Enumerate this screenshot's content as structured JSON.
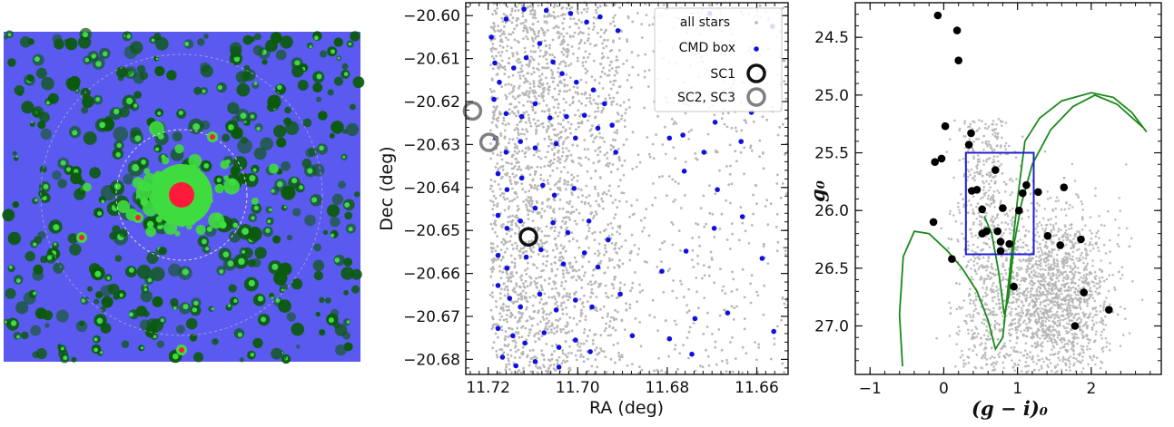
{
  "chart_data": [
    {
      "panel": "image",
      "type": "other",
      "description_colors": {
        "background": "#5a5af0",
        "mid": "#0a5a0a",
        "bright": "#3fdc3f",
        "core": "#ff1a3a",
        "circle": "#e6e6e6"
      }
    },
    {
      "panel": "sky-map",
      "type": "scatter",
      "xlabel": "RA (deg)",
      "ylabel": "Dec (deg)",
      "xlim": [
        11.725,
        11.653
      ],
      "ylim": [
        -20.6835,
        -20.597
      ],
      "x_ticks": [
        11.72,
        11.7,
        11.68,
        11.66
      ],
      "x_tick_labels": [
        "11.72",
        "11.70",
        "11.68",
        "11.66"
      ],
      "y_ticks": [
        -20.6,
        -20.61,
        -20.62,
        -20.63,
        -20.64,
        -20.65,
        -20.66,
        -20.67,
        -20.68
      ],
      "y_tick_labels": [
        "−20.60",
        "−20.61",
        "−20.62",
        "−20.63",
        "−20.64",
        "−20.65",
        "−20.66",
        "−20.67",
        "−20.68"
      ],
      "legend": {
        "placement": "top-right",
        "entries": [
          {
            "label": "all stars",
            "marker": "gray-dot",
            "color": "#b4b4b4"
          },
          {
            "label": "CMD box",
            "marker": "blue-dot",
            "color": "#1010e0"
          },
          {
            "label": "SC1",
            "marker": "black-ring",
            "color": "#111111"
          },
          {
            "label": "SC2, SC3",
            "marker": "gray-ring",
            "color": "#808080"
          }
        ]
      },
      "series": [
        {
          "name": "SC1",
          "points": [
            [
              11.711,
              -20.6515
            ]
          ]
        },
        {
          "name": "SC2, SC3",
          "points": [
            [
              11.7235,
              -20.6222
            ],
            [
              11.7198,
              -20.6295
            ]
          ]
        },
        {
          "name": "CMD box",
          "points": [
            [
              11.7193,
              -20.605
            ],
            [
              11.716,
              -20.6008
            ],
            [
              11.712,
              -20.5985
            ],
            [
              11.707,
              -20.5988
            ],
            [
              11.7016,
              -20.5995
            ],
            [
              11.698,
              -20.6015
            ],
            [
              11.695,
              -20.6003
            ],
            [
              11.6705,
              -20.5995
            ],
            [
              11.6565,
              -20.6025
            ],
            [
              11.691,
              -20.6035
            ],
            [
              11.7185,
              -20.611
            ],
            [
              11.7175,
              -20.6155
            ],
            [
              11.7143,
              -20.6122
            ],
            [
              11.7115,
              -20.6098
            ],
            [
              11.7085,
              -20.6065
            ],
            [
              11.7055,
              -20.6108
            ],
            [
              11.7035,
              -20.6135
            ],
            [
              11.7003,
              -20.6155
            ],
            [
              11.6965,
              -20.6173
            ],
            [
              11.694,
              -20.6205
            ],
            [
              11.7187,
              -20.6195
            ],
            [
              11.716,
              -20.6228
            ],
            [
              11.7125,
              -20.6235
            ],
            [
              11.7095,
              -20.6205
            ],
            [
              11.7062,
              -20.6238
            ],
            [
              11.7025,
              -20.6235
            ],
            [
              11.6985,
              -20.6232
            ],
            [
              11.6923,
              -20.6255
            ],
            [
              11.6693,
              -20.6248
            ],
            [
              11.6612,
              -20.6225
            ],
            [
              11.7183,
              -20.6285
            ],
            [
              11.716,
              -20.6318
            ],
            [
              11.7128,
              -20.6293
            ],
            [
              11.7095,
              -20.6308
            ],
            [
              11.7048,
              -20.6298
            ],
            [
              11.7005,
              -20.6285
            ],
            [
              11.6955,
              -20.6262
            ],
            [
              11.6795,
              -20.6285
            ],
            [
              11.6765,
              -20.6278
            ],
            [
              11.6718,
              -20.6318
            ],
            [
              11.6635,
              -20.6293
            ],
            [
              11.7178,
              -20.6368
            ],
            [
              11.7158,
              -20.6405
            ],
            [
              11.7125,
              -20.6378
            ],
            [
              11.7078,
              -20.6395
            ],
            [
              11.7052,
              -20.6418
            ],
            [
              11.7008,
              -20.6402
            ],
            [
              11.6915,
              -20.6318
            ],
            [
              11.6762,
              -20.6362
            ],
            [
              11.6688,
              -20.6405
            ],
            [
              11.7178,
              -20.6465
            ],
            [
              11.7158,
              -20.6495
            ],
            [
              11.7128,
              -20.6478
            ],
            [
              11.7095,
              -20.6448
            ],
            [
              11.7055,
              -20.6482
            ],
            [
              11.7022,
              -20.6505
            ],
            [
              11.6975,
              -20.6478
            ],
            [
              11.6932,
              -20.6522
            ],
            [
              11.6695,
              -20.6495
            ],
            [
              11.6632,
              -20.6468
            ],
            [
              11.7178,
              -20.6558
            ],
            [
              11.7158,
              -20.6588
            ],
            [
              11.7115,
              -20.6562
            ],
            [
              11.7082,
              -20.6545
            ],
            [
              11.7032,
              -20.6578
            ],
            [
              11.6985,
              -20.6552
            ],
            [
              11.6955,
              -20.6585
            ],
            [
              11.6812,
              -20.6595
            ],
            [
              11.6758,
              -20.6548
            ],
            [
              11.6588,
              -20.6565
            ],
            [
              11.7178,
              -20.6628
            ],
            [
              11.7152,
              -20.6658
            ],
            [
              11.7128,
              -20.6678
            ],
            [
              11.7085,
              -20.6648
            ],
            [
              11.7048,
              -20.6685
            ],
            [
              11.7005,
              -20.6662
            ],
            [
              11.6968,
              -20.6678
            ],
            [
              11.6905,
              -20.6648
            ],
            [
              11.6738,
              -20.6705
            ],
            [
              11.6665,
              -20.6692
            ],
            [
              11.7178,
              -20.6728
            ],
            [
              11.7145,
              -20.6745
            ],
            [
              11.7118,
              -20.6762
            ],
            [
              11.7075,
              -20.6738
            ],
            [
              11.7042,
              -20.6772
            ],
            [
              11.7005,
              -20.6755
            ],
            [
              11.6972,
              -20.6782
            ],
            [
              11.6878,
              -20.6745
            ],
            [
              11.6795,
              -20.6752
            ],
            [
              11.6562,
              -20.6735
            ],
            [
              11.7168,
              -20.6795
            ],
            [
              11.7138,
              -20.6815
            ],
            [
              11.7095,
              -20.6805
            ],
            [
              11.7042,
              -20.6818
            ],
            [
              11.6745,
              -20.6788
            ]
          ]
        }
      ]
    },
    {
      "panel": "cmd",
      "type": "scatter",
      "xlabel": "(g − i)₀",
      "ylabel": "g₀",
      "xlim": [
        -1.2,
        2.95
      ],
      "ylim": [
        27.42,
        24.2
      ],
      "x_ticks": [
        -1,
        0,
        1,
        2
      ],
      "x_tick_labels": [
        "−1",
        "0",
        "1",
        "2"
      ],
      "y_ticks": [
        24.5,
        25.0,
        25.5,
        26.0,
        26.5,
        27.0
      ],
      "y_tick_labels": [
        "24.5",
        "25.0",
        "25.5",
        "26.0",
        "26.5",
        "27.0"
      ],
      "box": {
        "x": [
          0.3,
          1.22
        ],
        "y": [
          25.5,
          26.38
        ],
        "color": "#2020d0"
      },
      "isochrone_color": "#1a8a1a",
      "series": [
        {
          "name": "",
          "points": [
            [
              -0.08,
              24.31
            ],
            [
              0.18,
              24.44
            ],
            [
              0.2,
              24.7
            ],
            [
              0.02,
              25.27
            ],
            [
              0.37,
              25.33
            ],
            [
              0.34,
              25.43
            ],
            [
              -0.12,
              25.58
            ],
            [
              -0.03,
              25.55
            ],
            [
              0.7,
              25.65
            ],
            [
              0.38,
              25.83
            ],
            [
              0.45,
              25.82
            ],
            [
              1.12,
              25.78
            ],
            [
              1.28,
              25.84
            ],
            [
              1.07,
              25.85
            ],
            [
              1.63,
              25.8
            ],
            [
              0.8,
              25.98
            ],
            [
              0.52,
              25.99
            ],
            [
              1.02,
              26.0
            ],
            [
              -0.14,
              26.1
            ],
            [
              0.58,
              26.18
            ],
            [
              0.73,
              26.18
            ],
            [
              0.52,
              26.2
            ],
            [
              1.41,
              26.22
            ],
            [
              1.86,
              26.25
            ],
            [
              0.77,
              26.27
            ],
            [
              0.89,
              26.29
            ],
            [
              0.11,
              26.42
            ],
            [
              0.77,
              26.35
            ],
            [
              0.95,
              26.66
            ],
            [
              1.58,
              26.3
            ],
            [
              1.9,
              26.71
            ],
            [
              2.24,
              26.86
            ],
            [
              1.78,
              27.0
            ]
          ]
        }
      ]
    }
  ]
}
